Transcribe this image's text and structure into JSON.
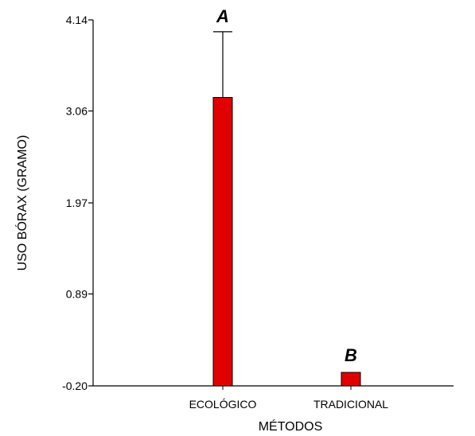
{
  "chart_data": {
    "type": "bar",
    "xlabel": "MÉTODOS",
    "ylabel": "USO BÓRAX (GRAMO)",
    "categories": [
      "ECOLÓGICO",
      "TRADICIONAL"
    ],
    "values": [
      3.22,
      -0.04
    ],
    "error_upper": [
      4.0,
      null
    ],
    "group_letters": [
      "A",
      "B"
    ],
    "yticks": [
      "-0.20",
      "0.89",
      "1.97",
      "3.06",
      "4.14"
    ],
    "ylim": [
      -0.2,
      4.14
    ],
    "grid": false,
    "legend": "none",
    "colors": {
      "bar_fill": "#e00000",
      "bar_stroke": "#000000",
      "axis": "#000000"
    }
  }
}
